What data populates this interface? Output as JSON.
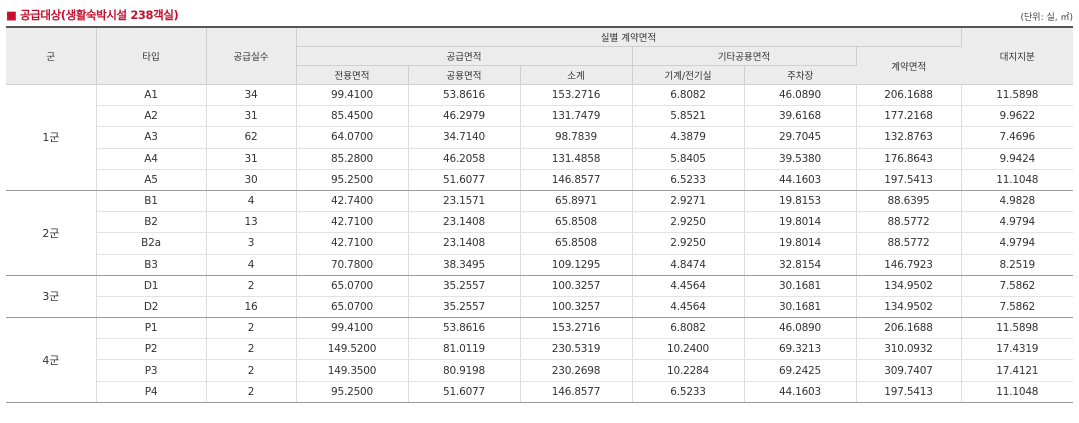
{
  "title": "■ 공급대상(생활숙박시설 238객실)",
  "unit": "(단위: 실, ㎡)",
  "headers": {
    "group": "군",
    "type": "타입",
    "rooms": "공급실수",
    "contract_area": "실별 계약면적",
    "supply_area": "공급면적",
    "exclusive": "전용면적",
    "common": "공용면적",
    "subtotal": "소계",
    "other_common": "기타공용면적",
    "mechanical": "기계/전기실",
    "parking": "주차장",
    "total_contract": "계약면적",
    "land_share": "대지지분"
  },
  "groups": [
    {
      "name": "1군",
      "rows": [
        {
          "type": "A1",
          "rooms": "34",
          "exclusive": "99.4100",
          "common": "53.8616",
          "subtotal": "153.2716",
          "mechanical": "6.8082",
          "parking": "46.0890",
          "contract": "206.1688",
          "land": "11.5898"
        },
        {
          "type": "A2",
          "rooms": "31",
          "exclusive": "85.4500",
          "common": "46.2979",
          "subtotal": "131.7479",
          "mechanical": "5.8521",
          "parking": "39.6168",
          "contract": "177.2168",
          "land": "9.9622"
        },
        {
          "type": "A3",
          "rooms": "62",
          "exclusive": "64.0700",
          "common": "34.7140",
          "subtotal": "98.7839",
          "mechanical": "4.3879",
          "parking": "29.7045",
          "contract": "132.8763",
          "land": "7.4696"
        },
        {
          "type": "A4",
          "rooms": "31",
          "exclusive": "85.2800",
          "common": "46.2058",
          "subtotal": "131.4858",
          "mechanical": "5.8405",
          "parking": "39.5380",
          "contract": "176.8643",
          "land": "9.9424"
        },
        {
          "type": "A5",
          "rooms": "30",
          "exclusive": "95.2500",
          "common": "51.6077",
          "subtotal": "146.8577",
          "mechanical": "6.5233",
          "parking": "44.1603",
          "contract": "197.5413",
          "land": "11.1048"
        }
      ]
    },
    {
      "name": "2군",
      "rows": [
        {
          "type": "B1",
          "rooms": "4",
          "exclusive": "42.7400",
          "common": "23.1571",
          "subtotal": "65.8971",
          "mechanical": "2.9271",
          "parking": "19.8153",
          "contract": "88.6395",
          "land": "4.9828"
        },
        {
          "type": "B2",
          "rooms": "13",
          "exclusive": "42.7100",
          "common": "23.1408",
          "subtotal": "65.8508",
          "mechanical": "2.9250",
          "parking": "19.8014",
          "contract": "88.5772",
          "land": "4.9794"
        },
        {
          "type": "B2a",
          "rooms": "3",
          "exclusive": "42.7100",
          "common": "23.1408",
          "subtotal": "65.8508",
          "mechanical": "2.9250",
          "parking": "19.8014",
          "contract": "88.5772",
          "land": "4.9794"
        },
        {
          "type": "B3",
          "rooms": "4",
          "exclusive": "70.7800",
          "common": "38.3495",
          "subtotal": "109.1295",
          "mechanical": "4.8474",
          "parking": "32.8154",
          "contract": "146.7923",
          "land": "8.2519"
        }
      ]
    },
    {
      "name": "3군",
      "rows": [
        {
          "type": "D1",
          "rooms": "2",
          "exclusive": "65.0700",
          "common": "35.2557",
          "subtotal": "100.3257",
          "mechanical": "4.4564",
          "parking": "30.1681",
          "contract": "134.9502",
          "land": "7.5862"
        },
        {
          "type": "D2",
          "rooms": "16",
          "exclusive": "65.0700",
          "common": "35.2557",
          "subtotal": "100.3257",
          "mechanical": "4.4564",
          "parking": "30.1681",
          "contract": "134.9502",
          "land": "7.5862"
        }
      ]
    },
    {
      "name": "4군",
      "rows": [
        {
          "type": "P1",
          "rooms": "2",
          "exclusive": "99.4100",
          "common": "53.8616",
          "subtotal": "153.2716",
          "mechanical": "6.8082",
          "parking": "46.0890",
          "contract": "206.1688",
          "land": "11.5898"
        },
        {
          "type": "P2",
          "rooms": "2",
          "exclusive": "149.5200",
          "common": "81.0119",
          "subtotal": "230.5319",
          "mechanical": "10.2400",
          "parking": "69.3213",
          "contract": "310.0932",
          "land": "17.4319"
        },
        {
          "type": "P3",
          "rooms": "2",
          "exclusive": "149.3500",
          "common": "80.9198",
          "subtotal": "230.2698",
          "mechanical": "10.2284",
          "parking": "69.2425",
          "contract": "309.7407",
          "land": "17.4121"
        },
        {
          "type": "P4",
          "rooms": "2",
          "exclusive": "95.2500",
          "common": "51.6077",
          "subtotal": "146.8577",
          "mechanical": "6.5233",
          "parking": "44.1603",
          "contract": "197.5413",
          "land": "11.1048"
        }
      ]
    }
  ],
  "colors": {
    "title": "#c8102e",
    "header_bg": "#ececec",
    "header_rule": "#555555"
  }
}
